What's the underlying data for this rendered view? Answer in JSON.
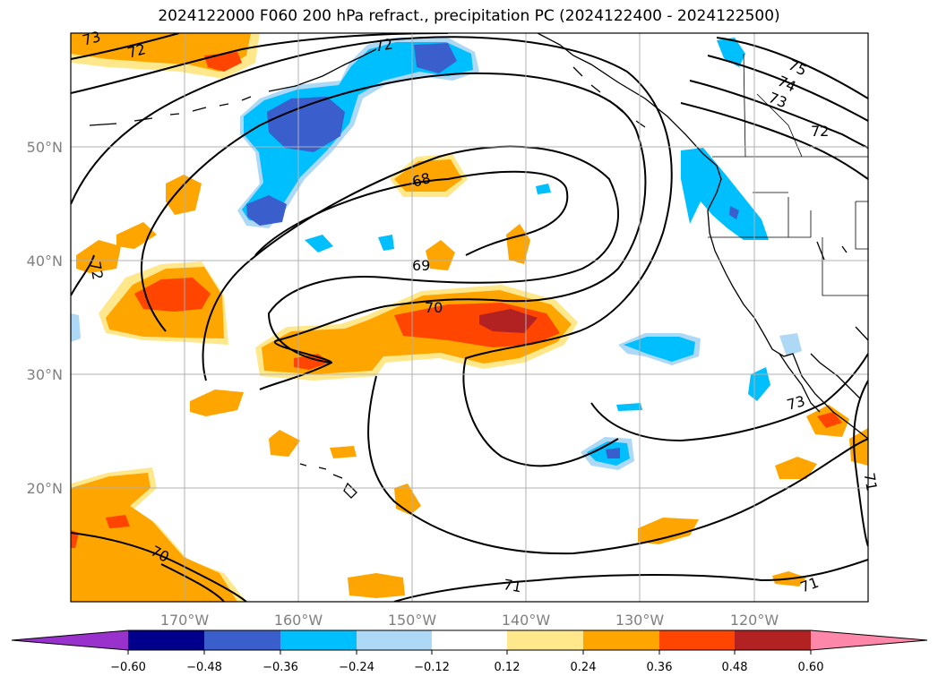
{
  "title": "2024122000 F060 200 hPa refract., precipitation PC (2024122400 - 2024122500)",
  "lon_ticks": [
    "170°W",
    "160°W",
    "150°W",
    "140°W",
    "130°W",
    "120°W"
  ],
  "lat_ticks": [
    "50°N",
    "40°N",
    "30°N",
    "20°N"
  ],
  "colorbar": {
    "tick_labels": [
      "−0.60",
      "−0.48",
      "−0.36",
      "−0.24",
      "−0.12",
      "0.12",
      "0.24",
      "0.36",
      "0.48",
      "0.60"
    ],
    "colors": [
      "#9932cc",
      "#00008b",
      "#3a5fcd",
      "#00bfff",
      "#add8f6",
      "#ffffff",
      "#ffe88c",
      "#ffa500",
      "#ff4500",
      "#b22222",
      "#ff88aa"
    ]
  },
  "contour_labels": [
    "73",
    "72",
    "72",
    "75",
    "74",
    "73",
    "72",
    "68",
    "69",
    "72",
    "70",
    "73",
    "71",
    "70",
    "71",
    "71"
  ],
  "colors": {
    "grid": "#b0b0b0",
    "coast": "#000000",
    "contour": "#000000",
    "axis_text": "#808080"
  }
}
